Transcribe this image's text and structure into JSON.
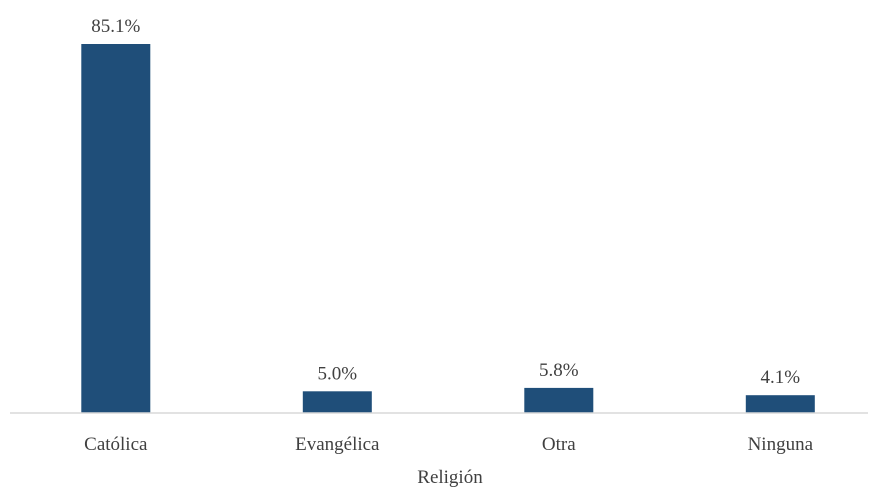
{
  "chart_data": {
    "type": "bar",
    "title": "",
    "xlabel": "Religión",
    "ylabel": "",
    "categories": [
      "Católica",
      "Evangélica",
      "Otra",
      "Ninguna"
    ],
    "values": [
      85.1,
      5.0,
      5.8,
      4.1
    ],
    "value_labels": [
      "85.1%",
      "5.0%",
      "5.8%",
      "4.1%"
    ],
    "unit": "%",
    "ylim": [
      0,
      85.1
    ],
    "grid": false,
    "legend": "none",
    "bar_color": "#1f4e79",
    "axis_color": "#d9d9d9"
  }
}
